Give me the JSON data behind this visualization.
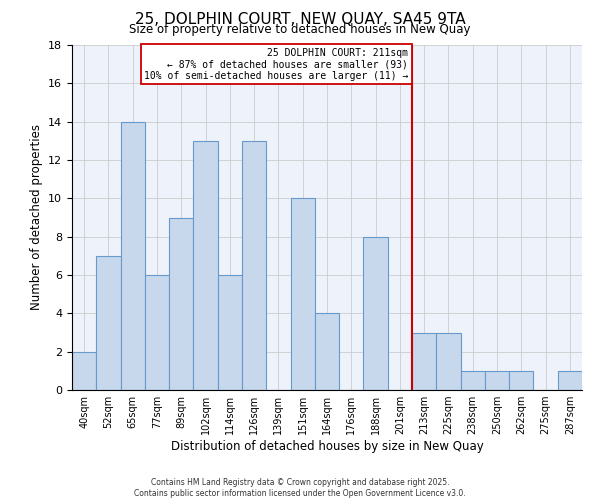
{
  "title": "25, DOLPHIN COURT, NEW QUAY, SA45 9TA",
  "subtitle": "Size of property relative to detached houses in New Quay",
  "xlabel": "Distribution of detached houses by size in New Quay",
  "ylabel": "Number of detached properties",
  "bin_labels": [
    "40sqm",
    "52sqm",
    "65sqm",
    "77sqm",
    "89sqm",
    "102sqm",
    "114sqm",
    "126sqm",
    "139sqm",
    "151sqm",
    "164sqm",
    "176sqm",
    "188sqm",
    "201sqm",
    "213sqm",
    "225sqm",
    "238sqm",
    "250sqm",
    "262sqm",
    "275sqm",
    "287sqm"
  ],
  "counts": [
    2,
    7,
    14,
    6,
    9,
    13,
    6,
    13,
    0,
    10,
    4,
    0,
    8,
    0,
    3,
    3,
    1,
    1,
    1,
    0,
    1
  ],
  "bar_color": "#c8d8ec",
  "bar_edge_color": "#6699cc",
  "grid_color": "#cccccc",
  "bg_color": "#eef2fa",
  "vline_index": 14,
  "vline_color": "#cc0000",
  "annotation_line1": "25 DOLPHIN COURT: 211sqm",
  "annotation_line2": "← 87% of detached houses are smaller (93)",
  "annotation_line3": "10% of semi-detached houses are larger (11) →",
  "annotation_box_color": "#ffffff",
  "annotation_box_edge": "#cc0000",
  "ylim": [
    0,
    18
  ],
  "yticks": [
    0,
    2,
    4,
    6,
    8,
    10,
    12,
    14,
    16,
    18
  ],
  "footer1": "Contains HM Land Registry data © Crown copyright and database right 2025.",
  "footer2": "Contains public sector information licensed under the Open Government Licence v3.0."
}
